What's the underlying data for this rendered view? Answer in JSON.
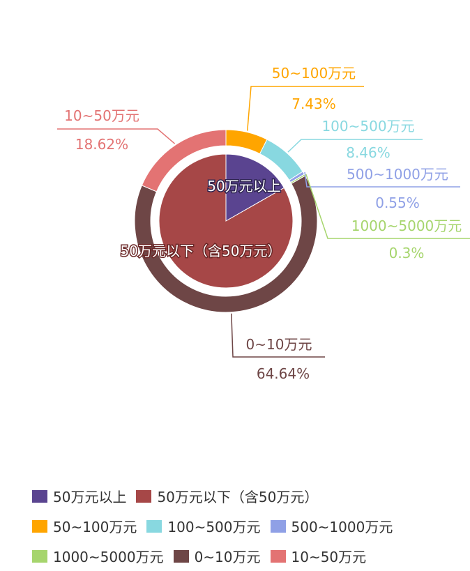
{
  "chart_data": {
    "type": "pie",
    "inner": {
      "series": [
        {
          "name": "50万元以上",
          "value": 16.74,
          "color": "#5a4490"
        },
        {
          "name": "50万元以下（含50万元）",
          "value": 83.26,
          "color": "#a64747"
        }
      ]
    },
    "outer": {
      "series": [
        {
          "name": "50~100万元",
          "value": 7.43,
          "label": "7.43%",
          "color": "#ffa500"
        },
        {
          "name": "100~500万元",
          "value": 8.46,
          "label": "8.46%",
          "color": "#88d8e0"
        },
        {
          "name": "500~1000万元",
          "value": 0.55,
          "label": "0.55%",
          "color": "#8fa0e6"
        },
        {
          "name": "1000~5000万元",
          "value": 0.3,
          "label": "0.3%",
          "color": "#a6d56d"
        },
        {
          "name": "0~10万元",
          "value": 64.64,
          "label": "64.64%",
          "color": "#6e4646"
        },
        {
          "name": "10~50万元",
          "value": 18.62,
          "label": "18.62%",
          "color": "#e37373"
        }
      ]
    },
    "legend": [
      [
        "50万元以上",
        "50万元以下（含50万元）"
      ],
      [
        "50~100万元",
        "100~500万元",
        "500~1000万元"
      ],
      [
        "1000~5000万元",
        "0~10万元",
        "10~50万元"
      ]
    ],
    "legend_position": "bottom"
  }
}
